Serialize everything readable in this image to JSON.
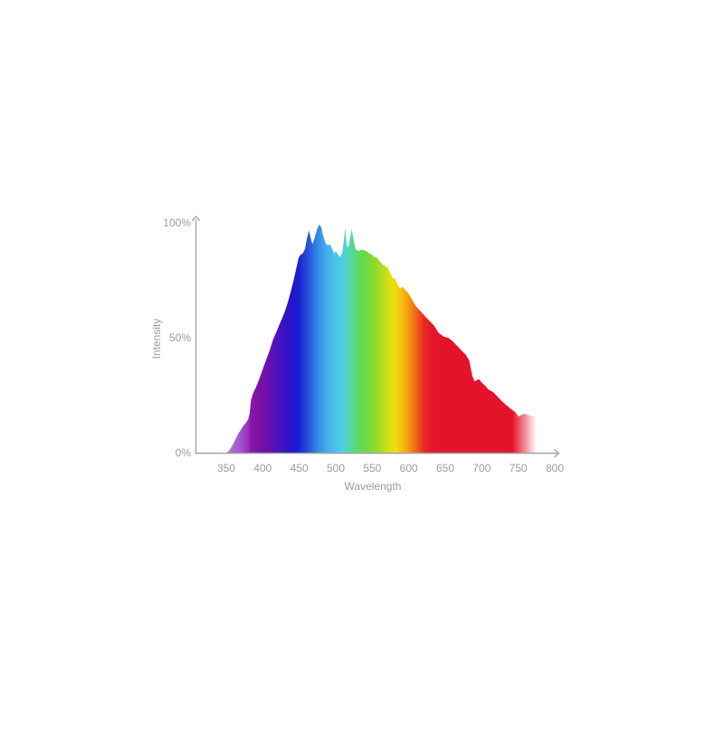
{
  "chart_data": {
    "type": "area",
    "title": "",
    "xlabel": "Wavelength",
    "ylabel": "Intensity",
    "xlim": [
      350,
      800
    ],
    "ylim": [
      0,
      100
    ],
    "x_ticks": [
      350,
      400,
      450,
      500,
      550,
      600,
      650,
      700,
      750,
      800
    ],
    "y_tick_labels": [
      "0%",
      "50%",
      "100%"
    ],
    "grid": false,
    "legend": false,
    "series": [
      {
        "name": "intensity",
        "x": [
          350,
          354,
          358,
          362,
          366,
          370,
          374,
          377,
          380,
          382,
          384,
          387,
          390,
          394,
          398,
          402,
          406,
          410,
          414,
          418,
          422,
          426,
          430,
          434,
          438,
          442,
          446,
          449,
          452,
          455,
          458,
          460,
          463,
          465,
          468,
          471,
          474,
          477,
          480,
          483,
          486,
          489,
          492,
          495,
          498,
          500,
          503,
          506,
          509,
          511,
          513,
          515,
          517,
          519,
          522,
          524,
          527,
          530,
          534,
          538,
          542,
          546,
          550,
          553,
          556,
          559,
          562,
          565,
          568,
          571,
          573,
          577,
          579,
          581,
          585,
          588,
          592,
          595,
          599,
          604,
          610,
          616,
          623,
          629,
          635,
          641,
          648,
          654,
          660,
          666,
          672,
          678,
          683,
          687,
          690,
          693,
          696,
          700,
          705,
          709,
          713,
          716,
          722,
          728,
          734,
          740,
          746,
          750,
          754,
          758,
          762,
          766,
          770,
          774,
          777,
          778
        ],
        "y": [
          0,
          1,
          3,
          5.5,
          8,
          10,
          12,
          13,
          14.5,
          17,
          23,
          26,
          28,
          31,
          34.5,
          38,
          41.5,
          45,
          49,
          52,
          55,
          58,
          61,
          65,
          69.5,
          74.5,
          80,
          84.5,
          86,
          86.5,
          88.5,
          92,
          96.5,
          94,
          90.5,
          93,
          96.5,
          99,
          98,
          94,
          91,
          90,
          90.5,
          88.5,
          86.5,
          87.5,
          86,
          85,
          87,
          92,
          97.5,
          90,
          89,
          92,
          97,
          93,
          88.5,
          87.5,
          88,
          88,
          87.5,
          86.5,
          86,
          84.8,
          84.8,
          83.5,
          82.5,
          81.5,
          81,
          80.3,
          79.2,
          76.6,
          75.3,
          76,
          72.7,
          71.4,
          72,
          70.7,
          69.4,
          66.8,
          63.5,
          61.5,
          59,
          57,
          55,
          52,
          50.4,
          49.9,
          48.5,
          46.5,
          44.5,
          42.6,
          40,
          33.5,
          31,
          31.5,
          32,
          30.5,
          29,
          27.5,
          26.8,
          26.2,
          24.2,
          22.3,
          20.6,
          19,
          17.7,
          15.8,
          16.3,
          17,
          16.6,
          16.2,
          15.8,
          15.4,
          15,
          0
        ]
      }
    ],
    "spectrum_gradient": [
      [
        350,
        "#b57cd5"
      ],
      [
        368,
        "#a855cd"
      ],
      [
        380,
        "#9a2fc0"
      ],
      [
        383,
        "#8d17ae"
      ],
      [
        395,
        "#7c10a4"
      ],
      [
        405,
        "#6f10ac"
      ],
      [
        415,
        "#5711b8"
      ],
      [
        427,
        "#3e11c1"
      ],
      [
        438,
        "#2713ca"
      ],
      [
        448,
        "#1a1ed0"
      ],
      [
        460,
        "#2149d9"
      ],
      [
        472,
        "#2f7de2"
      ],
      [
        485,
        "#41a8e9"
      ],
      [
        498,
        "#49c2ec"
      ],
      [
        510,
        "#4fcfe0"
      ],
      [
        518,
        "#53d6b0"
      ],
      [
        527,
        "#59da78"
      ],
      [
        538,
        "#64da4a"
      ],
      [
        550,
        "#84da30"
      ],
      [
        562,
        "#abdc20"
      ],
      [
        573,
        "#d8e012"
      ],
      [
        583,
        "#f3da0d"
      ],
      [
        593,
        "#f4b60f"
      ],
      [
        603,
        "#f28b14"
      ],
      [
        613,
        "#ef5618"
      ],
      [
        621,
        "#ea2b22"
      ],
      [
        633,
        "#e5122b"
      ],
      [
        800,
        "#e5122b"
      ]
    ],
    "fade_out": {
      "start_nm": 746,
      "end_nm": 775
    },
    "colors": {
      "axis": "#a6a6a6",
      "text": "#9b9b9b",
      "background": "#ffffff"
    }
  }
}
